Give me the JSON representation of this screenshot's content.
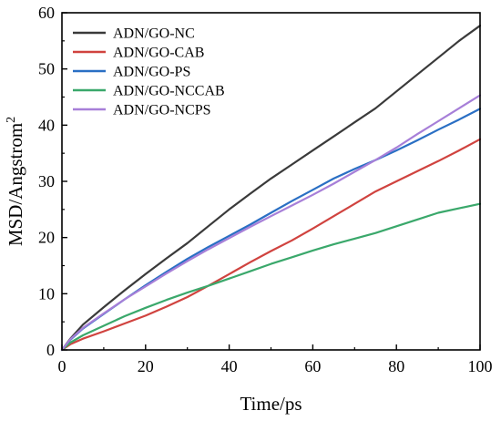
{
  "chart_data": {
    "type": "line",
    "xlabel": "Time/ps",
    "ylabel_main": "MSD/Angstrom",
    "ylabel_sup": "2",
    "xlim": [
      0,
      100
    ],
    "ylim": [
      0,
      60
    ],
    "xticks": [
      0,
      20,
      40,
      60,
      80,
      100
    ],
    "yticks": [
      0,
      10,
      20,
      30,
      40,
      50,
      60
    ],
    "grid": false,
    "legend_position": "top-left",
    "series": [
      {
        "name": "ADN/GO-NC",
        "color": "#3a3a3a",
        "x": [
          0,
          2,
          5,
          10,
          15,
          20,
          25,
          30,
          35,
          40,
          45,
          50,
          55,
          60,
          65,
          70,
          75,
          80,
          85,
          90,
          95,
          100
        ],
        "y": [
          0,
          2,
          4.5,
          7.6,
          10.6,
          13.5,
          16.3,
          19.0,
          22.0,
          25.0,
          27.8,
          30.5,
          33.0,
          35.5,
          38.0,
          40.5,
          43.0,
          46.0,
          49.0,
          52.0,
          55.0,
          57.7
        ]
      },
      {
        "name": "ADN/GO-CAB",
        "color": "#d0433f",
        "x": [
          0,
          2,
          5,
          10,
          15,
          20,
          25,
          30,
          35,
          40,
          45,
          50,
          55,
          60,
          65,
          70,
          75,
          80,
          85,
          90,
          95,
          100
        ],
        "y": [
          0,
          1.0,
          2.0,
          3.3,
          4.7,
          6.1,
          7.7,
          9.4,
          11.4,
          13.5,
          15.6,
          17.6,
          19.5,
          21.6,
          23.8,
          26.0,
          28.2,
          30.0,
          31.8,
          33.6,
          35.5,
          37.5
        ]
      },
      {
        "name": "ADN/GO-PS",
        "color": "#2a6fc4",
        "x": [
          0,
          2,
          5,
          10,
          15,
          20,
          25,
          30,
          35,
          40,
          45,
          50,
          55,
          60,
          65,
          70,
          75,
          80,
          85,
          90,
          95,
          100
        ],
        "y": [
          0,
          1.8,
          3.8,
          6.4,
          9.0,
          11.5,
          13.9,
          16.2,
          18.3,
          20.3,
          22.3,
          24.4,
          26.5,
          28.5,
          30.5,
          32.2,
          33.8,
          35.5,
          37.3,
          39.2,
          41.0,
          42.9
        ]
      },
      {
        "name": "ADN/GO-NCCAB",
        "color": "#3aa86b",
        "x": [
          0,
          2,
          5,
          10,
          15,
          20,
          25,
          30,
          35,
          40,
          45,
          50,
          55,
          60,
          65,
          70,
          75,
          80,
          85,
          90,
          95,
          100
        ],
        "y": [
          0,
          1.3,
          2.6,
          4.3,
          6.0,
          7.5,
          8.9,
          10.2,
          11.4,
          12.7,
          14.0,
          15.3,
          16.5,
          17.7,
          18.8,
          19.8,
          20.8,
          22.0,
          23.2,
          24.4,
          25.2,
          26.0
        ]
      },
      {
        "name": "ADN/GO-NCPS",
        "color": "#a77fd8",
        "x": [
          0,
          2,
          5,
          10,
          15,
          20,
          25,
          30,
          35,
          40,
          45,
          50,
          55,
          60,
          65,
          70,
          75,
          80,
          85,
          90,
          95,
          100
        ],
        "y": [
          0,
          1.9,
          3.9,
          6.5,
          9.0,
          11.3,
          13.6,
          15.8,
          17.9,
          19.9,
          21.9,
          23.8,
          25.7,
          27.6,
          29.6,
          31.7,
          33.8,
          36.0,
          38.4,
          40.7,
          43.0,
          45.3
        ]
      }
    ]
  }
}
